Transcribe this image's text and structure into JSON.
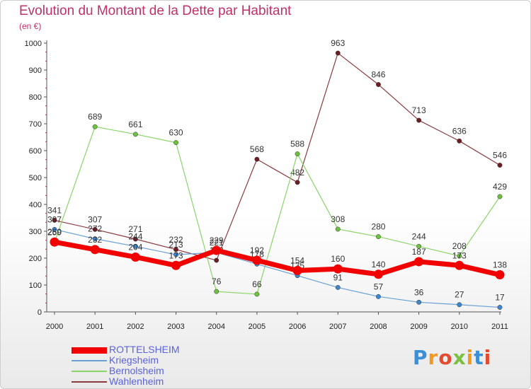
{
  "header": {
    "title": "Evolution du Montant de la Dette par Habitant",
    "subtitle": "(en €)"
  },
  "logo": {
    "text": "Proxiti",
    "colors": [
      "#3a8fd6",
      "#f29a1f",
      "#e24b2f",
      "#7ac142",
      "#f29a1f",
      "#3a8fd6",
      "#e24b2f"
    ]
  },
  "chart_data": {
    "type": "line",
    "title": "Evolution du Montant de la Dette par Habitant",
    "subtitle": "(en €)",
    "xlabel": "",
    "ylabel": "",
    "ylim": [
      0,
      1000
    ],
    "yticks": [
      0,
      100,
      200,
      300,
      400,
      500,
      600,
      700,
      800,
      900,
      1000
    ],
    "grid": false,
    "legend": "bottom-left",
    "x": [
      "2000",
      "2001",
      "2002",
      "2003",
      "2004",
      "2005",
      "2006",
      "2007",
      "2008",
      "2009",
      "2010",
      "2011"
    ],
    "series": [
      {
        "name": "Wahlenheim",
        "color": "#8b3a3f",
        "marker": "#6d1d22",
        "width": 1.2,
        "values": [
          341,
          307,
          271,
          232,
          192,
          568,
          482,
          963,
          846,
          713,
          636,
          546
        ]
      },
      {
        "name": "Bernolsheim",
        "color": "#8ad46a",
        "marker": "#6cc23d",
        "width": 1.2,
        "values": [
          259,
          689,
          661,
          630,
          76,
          66,
          588,
          308,
          280,
          244,
          208,
          429
        ]
      },
      {
        "name": "Kriegsheim",
        "color": "#6aa0d4",
        "marker": "#3e86cc",
        "width": 1.2,
        "values": [
          307,
          272,
          244,
          213,
          221,
          178,
          135,
          91,
          57,
          36,
          27,
          17
        ]
      },
      {
        "name": "ROTTELSHEIM",
        "color": "#f20000",
        "marker": "#f20000",
        "width": 7,
        "values": [
          260,
          232,
          204,
          173,
          229,
          192,
          154,
          160,
          140,
          187,
          173,
          138
        ]
      }
    ]
  }
}
